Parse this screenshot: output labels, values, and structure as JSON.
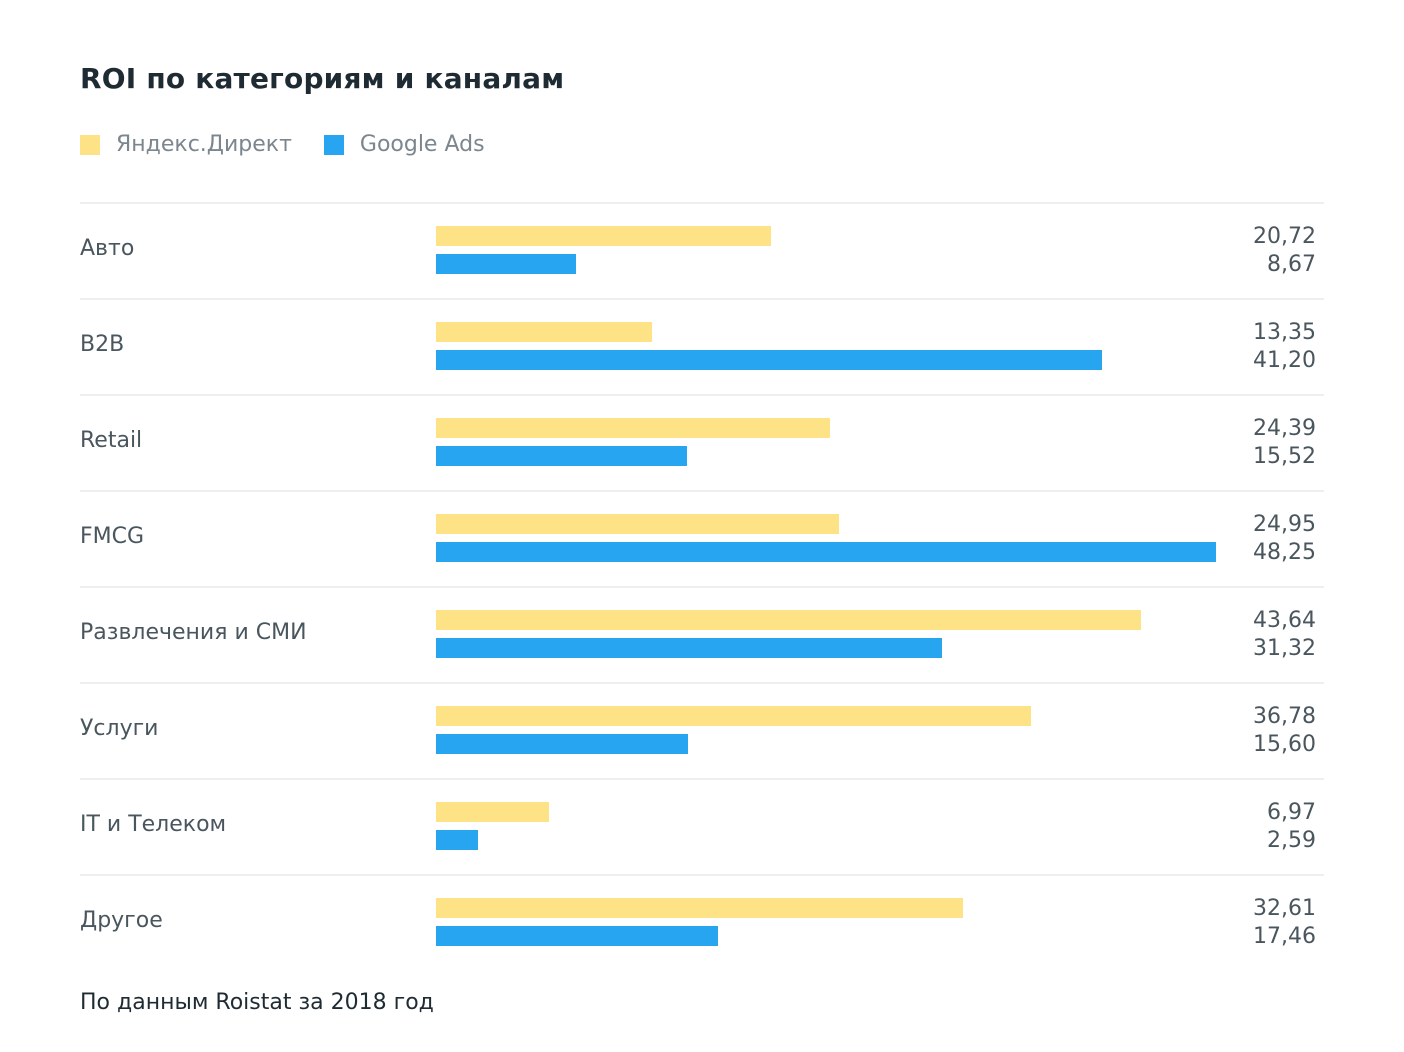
{
  "chart_data": {
    "type": "bar",
    "orientation": "horizontal",
    "title": "ROI по категориям и каналам",
    "categories": [
      "Авто",
      "B2B",
      "Retail",
      "FMCG",
      "Развлечения и СМИ",
      "Услуги",
      "IT и Телеком",
      "Другое"
    ],
    "series": [
      {
        "name": "Яндекс.Директ",
        "color": "#fee286",
        "values": [
          20.72,
          13.35,
          24.39,
          24.95,
          43.64,
          36.78,
          6.97,
          32.61
        ],
        "labels": [
          "20,72",
          "13,35",
          "24,39",
          "24,95",
          "43,64",
          "36,78",
          "6,97",
          "32,61"
        ]
      },
      {
        "name": "Google Ads",
        "color": "#27a5f0",
        "values": [
          8.67,
          41.2,
          15.52,
          48.25,
          31.32,
          15.6,
          2.59,
          17.46
        ],
        "labels": [
          "8,67",
          "41,20",
          "15,52",
          "48,25",
          "31,32",
          "15,60",
          "2,59",
          "17,46"
        ]
      }
    ],
    "xlim": [
      0,
      48.25
    ],
    "xlabel": "",
    "ylabel": "",
    "grid": false,
    "legend": "top-left",
    "source": "По данным Roistat за 2018 год"
  }
}
